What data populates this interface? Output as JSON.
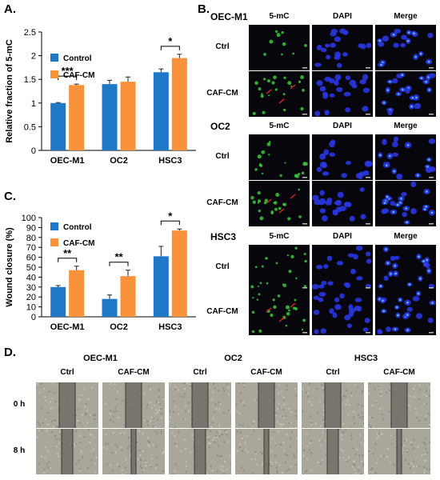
{
  "panel_letters": {
    "a": "A.",
    "b": "B.",
    "c": "C.",
    "d": "D."
  },
  "colors": {
    "control": "#1f77c8",
    "caf": "#f7923a",
    "cell_bg": "#06060c",
    "green": "#3cc83c",
    "blue": "#2a36e0",
    "red_arrow": "#e62020"
  },
  "chart_data": [
    {
      "id": "A",
      "type": "bar",
      "title": "",
      "xlabel": "",
      "ylabel": "Relative fraction of 5-mC",
      "ylim": [
        0,
        2.5
      ],
      "yticks": [
        "0",
        "0.5",
        "1",
        "1.5",
        "2",
        "2.5"
      ],
      "ytick_values": [
        0,
        0.5,
        1,
        1.5,
        2,
        2.5
      ],
      "categories": [
        "OEC-M1",
        "OC2",
        "HSC3"
      ],
      "series": [
        {
          "name": "Control",
          "values": [
            1.0,
            1.4,
            1.65
          ],
          "errors": [
            0.01,
            0.08,
            0.07
          ]
        },
        {
          "name": "CAF-CM",
          "values": [
            1.38,
            1.45,
            1.95
          ],
          "errors": [
            0.02,
            0.1,
            0.08
          ]
        }
      ],
      "significance": [
        "***",
        "",
        "*"
      ],
      "legend": "top-left",
      "grid": false
    },
    {
      "id": "C",
      "type": "bar",
      "title": "",
      "xlabel": "",
      "ylabel": "Wound closure (%)",
      "ylim": [
        0,
        100
      ],
      "yticks": [
        "0",
        "10",
        "20",
        "30",
        "40",
        "50",
        "60",
        "70",
        "80",
        "90",
        "100"
      ],
      "ytick_values": [
        0,
        10,
        20,
        30,
        40,
        50,
        60,
        70,
        80,
        90,
        100
      ],
      "categories": [
        "OEC-M1",
        "OC2",
        "HSC3"
      ],
      "series": [
        {
          "name": "Control",
          "values": [
            30,
            18,
            61
          ],
          "errors": [
            1.5,
            4,
            10
          ]
        },
        {
          "name": "CAF-CM",
          "values": [
            47,
            41,
            87
          ],
          "errors": [
            4,
            6,
            1.5
          ]
        }
      ],
      "significance": [
        "**",
        "**",
        "*"
      ],
      "legend": "top-left",
      "grid": false
    }
  ],
  "panel_b": {
    "column_headers": [
      "5-mC",
      "DAPI",
      "Merge"
    ],
    "groups": [
      {
        "name": "OEC-M1",
        "rows": [
          "Ctrl",
          "CAF-CM"
        ]
      },
      {
        "name": "OC2",
        "rows": [
          "Ctrl",
          "CAF-CM"
        ]
      },
      {
        "name": "HSC3",
        "rows": [
          "Ctrl",
          "CAF-CM"
        ]
      }
    ]
  },
  "panel_d": {
    "groups": [
      "OEC-M1",
      "OC2",
      "HSC3"
    ],
    "conditions": [
      "Ctrl",
      "CAF-CM"
    ],
    "timepoints": [
      "0 h",
      "8 h"
    ]
  }
}
